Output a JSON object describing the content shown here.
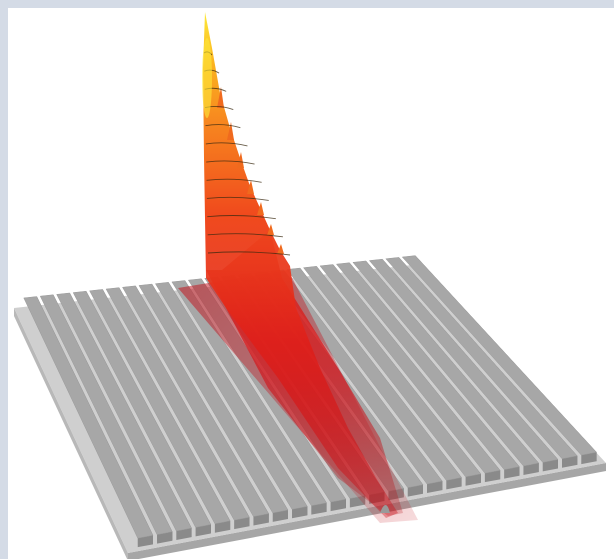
{
  "figure": {
    "description_visible_text": "",
    "frame_color": "#d4dbe6",
    "background_color": "#ffffff",
    "substrate": {
      "color_top": "#cfcfcf",
      "color_edge": "#a6a6a6",
      "ridge_count": 24,
      "ridge_top_color": "#a7a7a7",
      "ridge_side_color": "#5e5e5e",
      "ridge_front_color": "#8a8a8a"
    },
    "beam": {
      "colormap": [
        "#d10a14",
        "#e8261a",
        "#f0521e",
        "#f7871f",
        "#fbb51f",
        "#fde93a"
      ],
      "contour_line_color": "#3a2a10",
      "contour_count": 12
    }
  }
}
